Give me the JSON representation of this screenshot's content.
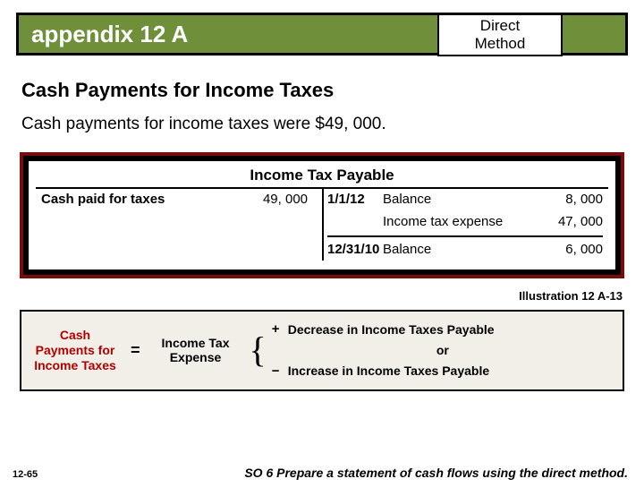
{
  "header": {
    "appendix": "appendix 12 A",
    "direct_line1": "Direct",
    "direct_line2": "Method",
    "bg_color": "#6f8f3a",
    "border_color": "#000000"
  },
  "section": {
    "title": "Cash Payments for Income Taxes",
    "body": "Cash payments for income taxes were $49, 000."
  },
  "t_account": {
    "title": "Income Tax Payable",
    "outer_border_color": "#7a0b0b",
    "left": {
      "label": "Cash paid for taxes",
      "amount": "49, 000"
    },
    "right": {
      "rows": [
        {
          "date": "1/1/12",
          "desc": "Balance",
          "amount": "8, 000"
        },
        {
          "date": "",
          "desc": "Income tax expense",
          "amount": "47, 000"
        }
      ],
      "closing": {
        "date": "12/31/10",
        "desc": "Balance",
        "amount": "6, 000"
      }
    }
  },
  "illustration_label": "Illustration 12 A-13",
  "formula": {
    "left_l1": "Cash",
    "left_l2": "Payments for",
    "left_l3": "Income Taxes",
    "mid_l1": "Income Tax",
    "mid_l2": "Expense",
    "right_top_sign": "+",
    "right_top": "Decrease in Income Taxes Payable",
    "right_or": "or",
    "right_bot_sign": "−",
    "right_bot": "Increase in Income Taxes Payable",
    "left_color": "#b00000",
    "bg_color": "#f2efe8"
  },
  "footer": {
    "so": "SO 6  Prepare a statement of cash flows using the direct method.",
    "slide": "12-65"
  }
}
